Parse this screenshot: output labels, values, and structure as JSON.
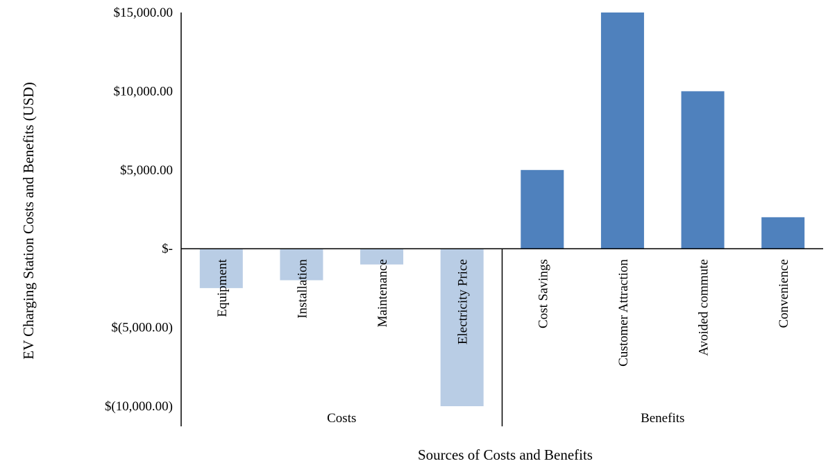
{
  "chart_data": {
    "type": "bar",
    "title": "",
    "xlabel": "Sources of Costs and Benefits",
    "ylabel": "EV Charging Station Costs and Benefits (USD)",
    "ylim": [
      -10000,
      15000
    ],
    "y_ticks": [
      15000,
      10000,
      5000,
      0,
      -5000,
      -10000
    ],
    "y_tick_labels": [
      "$15,000.00",
      "$10,000.00",
      "$5,000.00",
      "$-",
      "$(5,000.00)",
      "$(10,000.00)"
    ],
    "grid": false,
    "legend": "none",
    "categories": [
      "Equipment",
      "Installation",
      "Maintenance",
      "Electricity Price",
      "Cost Savings",
      "Customer Attraction",
      "Avoided commute",
      "Convenience"
    ],
    "groups": [
      {
        "label": "Costs",
        "categories": [
          "Equipment",
          "Installation",
          "Maintenance",
          "Electricity Price"
        ]
      },
      {
        "label": "Benefits",
        "categories": [
          "Cost Savings",
          "Customer Attraction",
          "Avoided commute",
          "Convenience"
        ]
      }
    ],
    "values": [
      -2500,
      -2000,
      -1000,
      -10000,
      5000,
      15000,
      10000,
      2000
    ],
    "colors": {
      "costs": "#b9cde5",
      "benefits": "#4f81bd",
      "axis": "#000000"
    }
  }
}
